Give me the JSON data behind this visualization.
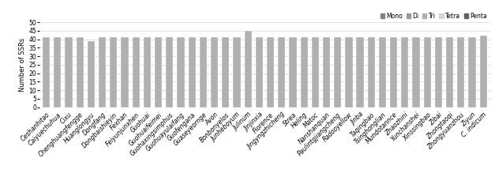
{
  "categories": [
    "Ceshanhitao",
    "Caiyuechuhua",
    "Cixu",
    "Chenghuangfengge",
    "Huanglongyu",
    "Dongfang",
    "Dongbaishieyin",
    "Fexhan",
    "Feiyunjunxhen",
    "Guohuai",
    "Guohuaifeimei",
    "Guohaxingsimphus",
    "Guohuayulaifang",
    "Guofengana",
    "Guaseyeornge",
    "Avon",
    "Bonbonyelos",
    "Junheboyum",
    "Julinum",
    "Jinjinxia",
    "Florence",
    "Jingyngzhicheng",
    "Strea",
    "Heling",
    "Matoc",
    "Nanshanquan",
    "Paulintgjiangcheng",
    "Radooyellow",
    "Jinba",
    "Taqingbao",
    "Tsinghonglian",
    "Mundotannce",
    "Zhaozhini",
    "Yunchanshei",
    "Xinssingbao",
    "Zibai",
    "Zhongtaoqi",
    "Zhongyuanzhou",
    "Ziyun",
    "C. indicum"
  ],
  "values": [
    41,
    41,
    41,
    41,
    39,
    41,
    41,
    41,
    41,
    41,
    41,
    41,
    41,
    41,
    41,
    41,
    41,
    41,
    45,
    41,
    41,
    41,
    41,
    41,
    41,
    41,
    41,
    41,
    41,
    41,
    41,
    41,
    41,
    41,
    41,
    41,
    41,
    41,
    41,
    42
  ],
  "bar_color": "#b0b0b0",
  "ylabel": "Number of SSRs",
  "ylim": [
    0,
    50
  ],
  "yticks": [
    0,
    5,
    10,
    15,
    20,
    25,
    30,
    35,
    40,
    45,
    50
  ],
  "legend_labels": [
    "Mono",
    "Di",
    "Tri",
    "Tetra",
    "Penta"
  ],
  "legend_colors": [
    "#808080",
    "#999999",
    "#b0b0b0",
    "#d4d4d4",
    "#606060"
  ],
  "background_color": "#ffffff",
  "grid_color": "#d8d8d8",
  "axis_fontsize": 6,
  "tick_fontsize": 5.5,
  "label_rotation": 45,
  "bar_width": 0.65
}
